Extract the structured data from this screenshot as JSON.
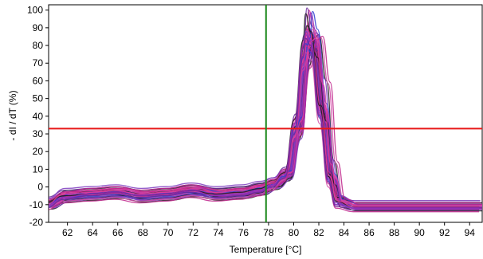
{
  "chart_data": {
    "type": "line",
    "title": "",
    "xlabel": "Temperature [°C]",
    "ylabel": "- dI / dT (%)",
    "xlim": [
      60.5,
      95
    ],
    "ylim": [
      -20,
      103
    ],
    "xticks": [
      62,
      64,
      66,
      68,
      70,
      72,
      74,
      76,
      78,
      80,
      82,
      84,
      86,
      88,
      90,
      92,
      94
    ],
    "yticks": [
      -20,
      -10,
      0,
      10,
      20,
      30,
      40,
      50,
      60,
      70,
      80,
      90,
      100
    ],
    "grid": false,
    "legend": "none",
    "threshold_y": 33,
    "marker_x": 77.8,
    "colors": {
      "threshold": "#e81818",
      "marker": "#1e8a1e",
      "series": [
        "#c0268c",
        "#e03c9a",
        "#9c2ab4",
        "#6a2a9a",
        "#2f3fd0",
        "#1a1a1a",
        "#d04aa6",
        "#7e3cc0"
      ]
    },
    "series": [
      {
        "values": [
          [
            60.5,
            -8
          ],
          [
            62,
            -4
          ],
          [
            64,
            -3
          ],
          [
            66,
            -2
          ],
          [
            68,
            -4
          ],
          [
            70,
            -3
          ],
          [
            72,
            -1
          ],
          [
            74,
            -3
          ],
          [
            76,
            -2
          ],
          [
            77.5,
            0
          ],
          [
            78.5,
            3
          ],
          [
            79.5,
            8
          ],
          [
            80.3,
            35
          ],
          [
            81,
            75
          ],
          [
            81.2,
            83
          ],
          [
            81.6,
            78
          ],
          [
            82.3,
            42
          ],
          [
            83,
            5
          ],
          [
            83.6,
            -8
          ],
          [
            85,
            -10
          ],
          [
            88,
            -10
          ],
          [
            91,
            -10
          ],
          [
            95,
            -10
          ]
        ]
      },
      {
        "values": [
          [
            60.5,
            -7
          ],
          [
            62,
            -3
          ],
          [
            64,
            -2
          ],
          [
            66,
            -1
          ],
          [
            68,
            -3
          ],
          [
            70,
            -2
          ],
          [
            72,
            0
          ],
          [
            74,
            -2
          ],
          [
            76,
            -1
          ],
          [
            77.5,
            1
          ],
          [
            78.5,
            4
          ],
          [
            79.5,
            10
          ],
          [
            80.3,
            40
          ],
          [
            81,
            85
          ],
          [
            81.2,
            100
          ],
          [
            81.6,
            90
          ],
          [
            82.3,
            48
          ],
          [
            83,
            8
          ],
          [
            83.6,
            -6
          ],
          [
            85,
            -9
          ],
          [
            88,
            -9
          ],
          [
            91,
            -9
          ],
          [
            95,
            -9
          ]
        ]
      },
      {
        "values": [
          [
            60.5,
            -10
          ],
          [
            62,
            -6
          ],
          [
            64,
            -5
          ],
          [
            66,
            -4
          ],
          [
            68,
            -6
          ],
          [
            70,
            -5
          ],
          [
            72,
            -3
          ],
          [
            74,
            -5
          ],
          [
            76,
            -4
          ],
          [
            77.5,
            -2
          ],
          [
            78.5,
            1
          ],
          [
            79.5,
            6
          ],
          [
            80.3,
            30
          ],
          [
            81,
            70
          ],
          [
            81.2,
            78
          ],
          [
            81.6,
            74
          ],
          [
            82.3,
            38
          ],
          [
            83,
            2
          ],
          [
            83.6,
            -9
          ],
          [
            85,
            -11
          ],
          [
            88,
            -11
          ],
          [
            91,
            -11
          ],
          [
            95,
            -11
          ]
        ]
      },
      {
        "values": [
          [
            60.5,
            -9
          ],
          [
            62,
            -5
          ],
          [
            64,
            -4
          ],
          [
            66,
            -3
          ],
          [
            68,
            -5
          ],
          [
            70,
            -4
          ],
          [
            72,
            -2
          ],
          [
            74,
            -4
          ],
          [
            76,
            -3
          ],
          [
            77.5,
            -1
          ],
          [
            78.5,
            2
          ],
          [
            79.5,
            7
          ],
          [
            80.3,
            33
          ],
          [
            81,
            80
          ],
          [
            81.2,
            90
          ],
          [
            81.6,
            85
          ],
          [
            82.3,
            45
          ],
          [
            83,
            6
          ],
          [
            83.6,
            -7
          ],
          [
            85,
            -10
          ],
          [
            88,
            -10
          ],
          [
            91,
            -10
          ],
          [
            95,
            -10
          ]
        ]
      },
      {
        "values": [
          [
            60.5,
            -11
          ],
          [
            62,
            -7
          ],
          [
            64,
            -6
          ],
          [
            66,
            -5
          ],
          [
            68,
            -7
          ],
          [
            70,
            -6
          ],
          [
            72,
            -4
          ],
          [
            74,
            -6
          ],
          [
            76,
            -5
          ],
          [
            77.5,
            -3
          ],
          [
            78.5,
            0
          ],
          [
            79.5,
            5
          ],
          [
            80.3,
            28
          ],
          [
            81,
            72
          ],
          [
            81.2,
            82
          ],
          [
            81.6,
            80
          ],
          [
            82.3,
            43
          ],
          [
            83,
            4
          ],
          [
            83.6,
            -10
          ],
          [
            85,
            -12
          ],
          [
            88,
            -12
          ],
          [
            91,
            -12
          ],
          [
            95,
            -12
          ]
        ]
      },
      {
        "values": [
          [
            60.5,
            -8
          ],
          [
            62,
            -2
          ],
          [
            64,
            -1
          ],
          [
            66,
            0
          ],
          [
            68,
            -2
          ],
          [
            70,
            -1
          ],
          [
            72,
            1
          ],
          [
            74,
            -1
          ],
          [
            76,
            0
          ],
          [
            77.5,
            2
          ],
          [
            78.5,
            4
          ],
          [
            79.5,
            9
          ],
          [
            80.3,
            30
          ],
          [
            81,
            68
          ],
          [
            81.6,
            84
          ],
          [
            82,
            86
          ],
          [
            82.6,
            60
          ],
          [
            83.2,
            15
          ],
          [
            83.8,
            -6
          ],
          [
            85,
            -9
          ],
          [
            88,
            -9
          ],
          [
            91,
            -9
          ],
          [
            95,
            -9
          ]
        ]
      },
      {
        "values": [
          [
            60.5,
            -9
          ],
          [
            62,
            -4
          ],
          [
            64,
            -2
          ],
          [
            66,
            -1
          ],
          [
            68,
            -3
          ],
          [
            70,
            -2
          ],
          [
            72,
            0
          ],
          [
            74,
            -3
          ],
          [
            76,
            -2
          ],
          [
            77.5,
            0
          ],
          [
            78.5,
            3
          ],
          [
            79.5,
            9
          ],
          [
            80.3,
            38
          ],
          [
            81,
            82
          ],
          [
            81.2,
            88
          ],
          [
            81.6,
            84
          ],
          [
            82.3,
            44
          ],
          [
            83,
            7
          ],
          [
            83.6,
            -8
          ],
          [
            85,
            -10
          ],
          [
            88,
            -10
          ],
          [
            91,
            -10
          ],
          [
            95,
            -10
          ]
        ]
      },
      {
        "values": [
          [
            60.5,
            -10
          ],
          [
            62,
            -5
          ],
          [
            64,
            -3
          ],
          [
            66,
            -2
          ],
          [
            68,
            -4
          ],
          [
            70,
            -3
          ],
          [
            72,
            -1
          ],
          [
            74,
            -4
          ],
          [
            76,
            -3
          ],
          [
            77.5,
            -1
          ],
          [
            78.5,
            2
          ],
          [
            79.5,
            7
          ],
          [
            80.3,
            32
          ],
          [
            81,
            76
          ],
          [
            81.2,
            86
          ],
          [
            81.6,
            82
          ],
          [
            82.3,
            41
          ],
          [
            83,
            5
          ],
          [
            83.6,
            -9
          ],
          [
            85,
            -11
          ],
          [
            88,
            -11
          ],
          [
            91,
            -11
          ],
          [
            95,
            -11
          ]
        ]
      }
    ]
  }
}
